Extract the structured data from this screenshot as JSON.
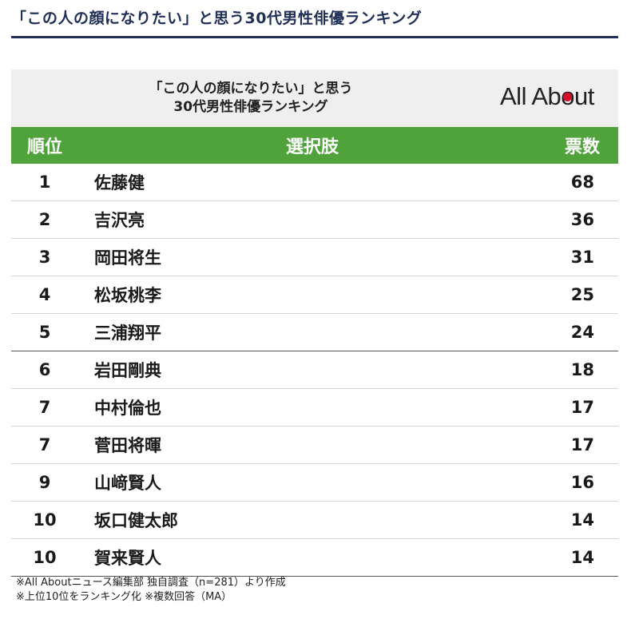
{
  "page_heading": "「この人の顔になりたい」と思う30代男性俳優ランキング",
  "card": {
    "title_line1": "「この人の顔になりたい」と思う",
    "title_line2": "30代男性俳優ランキング",
    "logo": {
      "part1": "All Ab",
      "o": "o",
      "part2": "ut"
    },
    "colors": {
      "header_green": "#4fa33a",
      "heading_navy": "#1f2f55",
      "logo_dot_red": "#d7102a"
    }
  },
  "table": {
    "headers": {
      "rank": "順位",
      "name": "選択肢",
      "votes": "票数"
    },
    "rows": [
      {
        "rank": "1",
        "name": "佐藤健",
        "votes": "68"
      },
      {
        "rank": "2",
        "name": "吉沢亮",
        "votes": "36"
      },
      {
        "rank": "3",
        "name": "岡田将生",
        "votes": "31"
      },
      {
        "rank": "4",
        "name": "松坂桃李",
        "votes": "25"
      },
      {
        "rank": "5",
        "name": "三浦翔平",
        "votes": "24"
      },
      {
        "rank": "6",
        "name": "岩田剛典",
        "votes": "18"
      },
      {
        "rank": "7",
        "name": "中村倫也",
        "votes": "17"
      },
      {
        "rank": "7",
        "name": "菅田将暉",
        "votes": "17"
      },
      {
        "rank": "9",
        "name": "山﨑賢人",
        "votes": "16"
      },
      {
        "rank": "10",
        "name": "坂口健太郎",
        "votes": "14"
      },
      {
        "rank": "10",
        "name": "賀来賢人",
        "votes": "14"
      }
    ]
  },
  "footnotes": {
    "line1": "※All Aboutニュース編集部 独自調査（n=281）より作成",
    "line2": "※上位10位をランキング化 ※複数回答（MA）"
  }
}
